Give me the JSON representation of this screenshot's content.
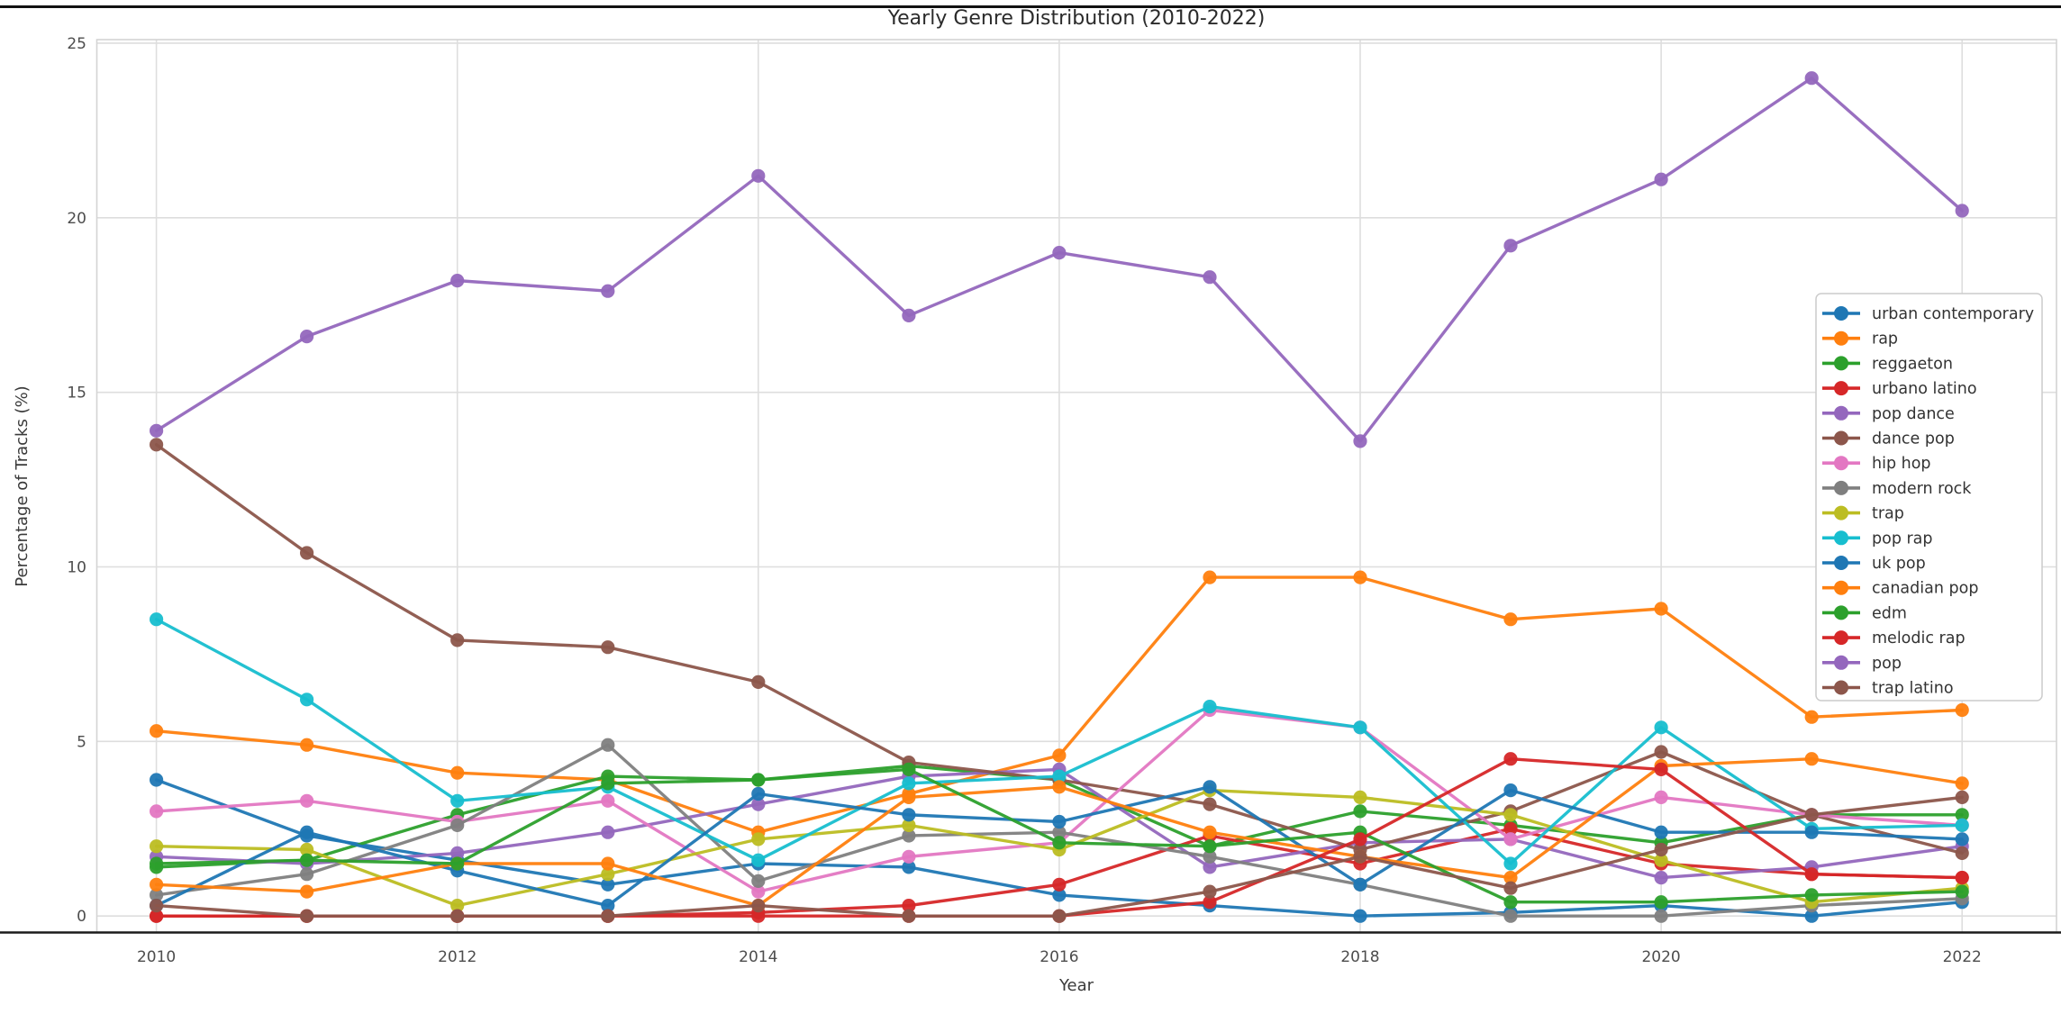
{
  "chart_data": {
    "type": "line",
    "title": "Yearly Genre Distribution (2010-2022)",
    "xlabel": "Year",
    "ylabel": "Percentage of Tracks (%)",
    "x": [
      2010,
      2011,
      2012,
      2013,
      2014,
      2015,
      2016,
      2017,
      2018,
      2019,
      2020,
      2021,
      2022
    ],
    "xticks": [
      2010,
      2012,
      2014,
      2016,
      2018,
      2020,
      2022
    ],
    "yticks": [
      0,
      5,
      10,
      15,
      20,
      25
    ],
    "ylim": [
      0,
      25
    ],
    "grid": true,
    "legend_position": "center right",
    "marker": "circle",
    "series": [
      {
        "name": "urban contemporary",
        "color": "#1f77b4",
        "values": [
          3.9,
          2.3,
          1.6,
          0.9,
          1.5,
          1.4,
          0.6,
          0.3,
          0.0,
          0.1,
          0.3,
          0.0,
          0.4
        ]
      },
      {
        "name": "rap",
        "color": "#ff7f0e",
        "values": [
          5.3,
          4.9,
          4.1,
          3.9,
          2.4,
          3.5,
          4.6,
          9.7,
          9.7,
          8.5,
          8.8,
          5.7,
          5.9
        ]
      },
      {
        "name": "reggaeton",
        "color": "#2ca02c",
        "values": [
          1.4,
          1.6,
          2.9,
          4.0,
          3.9,
          4.3,
          3.9,
          2.0,
          3.0,
          2.6,
          2.1,
          2.9,
          2.9
        ]
      },
      {
        "name": "urbano latino",
        "color": "#d62728",
        "values": [
          0.0,
          0.0,
          0.0,
          0.0,
          0.1,
          0.3,
          0.9,
          2.3,
          1.5,
          2.5,
          1.5,
          1.2,
          1.1
        ]
      },
      {
        "name": "pop dance",
        "color": "#9467bd",
        "values": [
          1.7,
          1.5,
          1.8,
          2.4,
          3.2,
          4.0,
          4.2,
          1.4,
          2.1,
          2.2,
          1.1,
          1.4,
          2.0
        ]
      },
      {
        "name": "dance pop",
        "color": "#8c564b",
        "values": [
          13.5,
          10.4,
          7.9,
          7.7,
          6.7,
          4.4,
          3.9,
          3.2,
          1.9,
          3.0,
          4.7,
          2.9,
          1.8
        ]
      },
      {
        "name": "hip hop",
        "color": "#e377c2",
        "values": [
          3.0,
          3.3,
          2.7,
          3.3,
          0.7,
          1.7,
          2.1,
          5.9,
          5.4,
          2.2,
          3.4,
          2.9,
          2.6
        ]
      },
      {
        "name": "modern rock",
        "color": "#7f7f7f",
        "values": [
          0.6,
          1.2,
          2.6,
          4.9,
          1.0,
          2.3,
          2.4,
          1.7,
          0.9,
          0.0,
          0.0,
          0.3,
          0.5
        ]
      },
      {
        "name": "trap",
        "color": "#bcbd22",
        "values": [
          2.0,
          1.9,
          0.3,
          1.2,
          2.2,
          2.6,
          1.9,
          3.6,
          3.4,
          2.9,
          1.6,
          0.4,
          0.8
        ]
      },
      {
        "name": "pop rap",
        "color": "#17becf",
        "values": [
          8.5,
          6.2,
          3.3,
          3.7,
          1.6,
          3.8,
          4.0,
          6.0,
          5.4,
          1.5,
          5.4,
          2.5,
          2.6
        ]
      },
      {
        "name": "uk pop",
        "color": "#1f77b4",
        "values": [
          0.3,
          2.4,
          1.3,
          0.3,
          3.5,
          2.9,
          2.7,
          3.7,
          0.9,
          3.6,
          2.4,
          2.4,
          2.2
        ]
      },
      {
        "name": "canadian pop",
        "color": "#ff7f0e",
        "values": [
          0.9,
          0.7,
          1.5,
          1.5,
          0.3,
          3.4,
          3.7,
          2.4,
          1.7,
          1.1,
          4.3,
          4.5,
          3.8
        ]
      },
      {
        "name": "edm",
        "color": "#2ca02c",
        "values": [
          1.5,
          1.6,
          1.5,
          3.8,
          3.9,
          4.2,
          2.1,
          2.0,
          2.4,
          0.4,
          0.4,
          0.6,
          0.7
        ]
      },
      {
        "name": "melodic rap",
        "color": "#d62728",
        "values": [
          0.0,
          0.0,
          0.0,
          0.0,
          0.0,
          0.0,
          0.0,
          0.4,
          2.2,
          4.5,
          4.2,
          1.2,
          1.1
        ]
      },
      {
        "name": "pop",
        "color": "#9467bd",
        "values": [
          13.9,
          16.6,
          18.2,
          17.9,
          21.2,
          17.2,
          19.0,
          18.3,
          13.6,
          19.2,
          21.1,
          24.0,
          20.2
        ]
      },
      {
        "name": "trap latino",
        "color": "#8c564b",
        "values": [
          0.3,
          0.0,
          0.0,
          0.0,
          0.3,
          0.0,
          0.0,
          0.7,
          1.7,
          0.8,
          1.9,
          2.9,
          3.4
        ]
      }
    ]
  }
}
